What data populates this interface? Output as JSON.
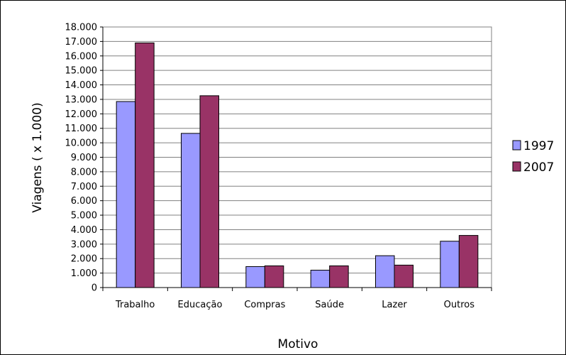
{
  "chart_data": {
    "type": "bar",
    "categories": [
      "Trabalho",
      "Educação",
      "Compras",
      "Saúde",
      "Lazer",
      "Outros"
    ],
    "series": [
      {
        "name": "1997",
        "color": "#9999ff",
        "values": [
          12850,
          10650,
          1450,
          1200,
          2200,
          3200
        ]
      },
      {
        "name": "2007",
        "color": "#993366",
        "values": [
          16900,
          13250,
          1500,
          1500,
          1550,
          3600
        ]
      }
    ],
    "title": "",
    "xlabel": "Motivo",
    "ylabel": "Viagens ( x 1.000)",
    "ylim": [
      0,
      18000
    ],
    "y_ticks": [
      "0",
      "1.000",
      "2.000",
      "3.000",
      "4.000",
      "5.000",
      "6.000",
      "7.000",
      "8.000",
      "9.000",
      "10.000",
      "11.000",
      "12.000",
      "13.000",
      "14.000",
      "15.000",
      "16.000",
      "17.000",
      "18.000"
    ],
    "grid": true,
    "legend_position": "right"
  }
}
